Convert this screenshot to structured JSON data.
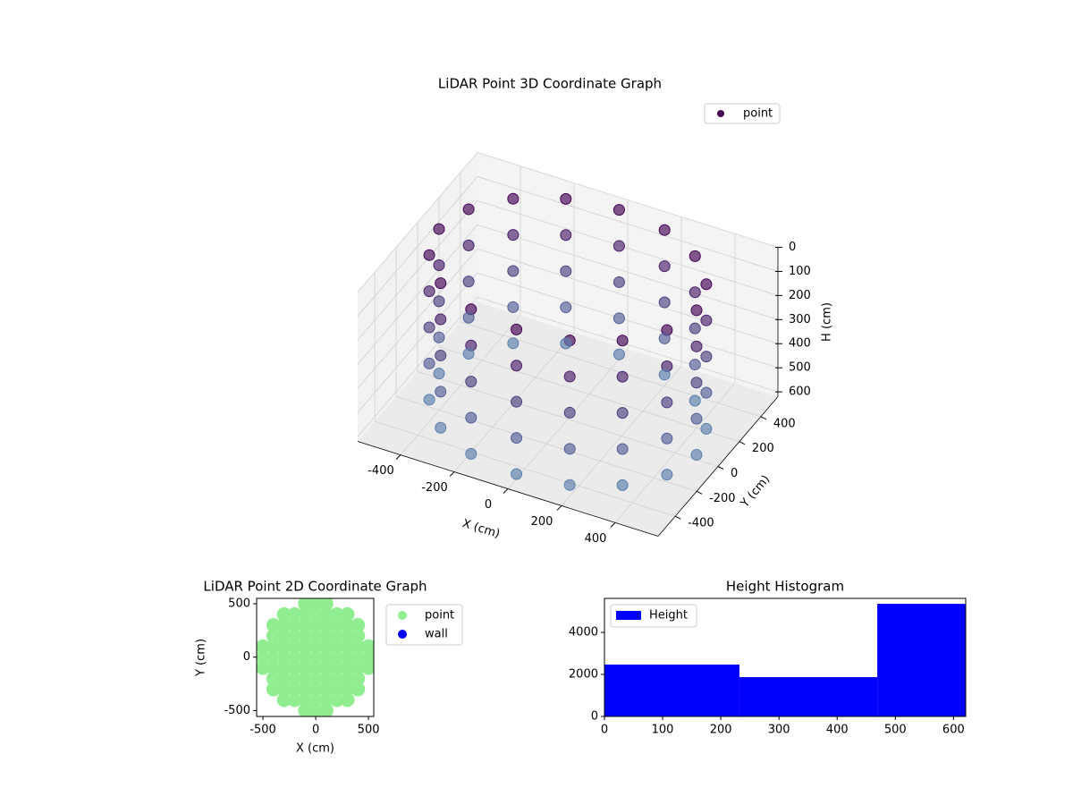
{
  "chart_data": [
    {
      "type": "scatter3d",
      "title": "LiDAR Point 3D Coordinate Graph",
      "x_label": "X (cm)",
      "y_label": "Y (cm)",
      "z_label": "H (cm)",
      "xlim": [
        -560,
        560
      ],
      "ylim": [
        -560,
        560
      ],
      "zlim": [
        0,
        620
      ],
      "invert_z": true,
      "xticks": [
        -400,
        -200,
        0,
        200,
        400
      ],
      "yticks": [
        -400,
        -200,
        0,
        200,
        400
      ],
      "zticks": [
        0,
        100,
        200,
        300,
        400,
        500,
        600
      ],
      "grid": true,
      "legend": "upper right",
      "colormap": [
        "#440154",
        "#5b84b1"
      ],
      "series": [
        {
          "name": "point",
          "color": "#440154",
          "x": [
            480,
            443,
            339,
            184,
            0,
            -184,
            -339,
            -443,
            -480,
            -443,
            -339,
            -184,
            0,
            184,
            339,
            443,
            480,
            443,
            339,
            184,
            0,
            -184,
            -339,
            -443,
            -480,
            -443,
            -339,
            -184,
            0,
            184,
            339,
            443,
            480,
            443,
            339,
            184,
            0,
            -184,
            -339,
            -443,
            -480,
            -443,
            -339,
            -184,
            0,
            184,
            339,
            443,
            480,
            443,
            339,
            184,
            0,
            -184,
            -339,
            -443,
            -480,
            -443,
            -339,
            -184,
            0,
            184,
            339,
            443,
            480,
            443,
            339,
            184,
            0,
            -184,
            -339,
            -443,
            -480,
            -443,
            -339,
            -184,
            0,
            184,
            339,
            443
          ],
          "y": [
            0,
            184,
            339,
            443,
            480,
            443,
            339,
            184,
            0,
            -184,
            -339,
            -443,
            -480,
            -443,
            -339,
            -184,
            0,
            184,
            339,
            443,
            480,
            443,
            339,
            184,
            0,
            -184,
            -339,
            -443,
            -480,
            -443,
            -339,
            -184,
            0,
            184,
            339,
            443,
            480,
            443,
            339,
            184,
            0,
            -184,
            -339,
            -443,
            -480,
            -443,
            -339,
            -184,
            0,
            184,
            339,
            443,
            480,
            443,
            339,
            184,
            0,
            -184,
            -339,
            -443,
            -480,
            -443,
            -339,
            -184,
            0,
            184,
            339,
            443,
            480,
            443,
            339,
            184,
            0,
            -184,
            -339,
            -443,
            -480,
            -443,
            -339,
            -184
          ],
          "z": [
            0,
            0,
            0,
            0,
            0,
            0,
            0,
            0,
            0,
            0,
            0,
            0,
            0,
            0,
            0,
            0,
            150,
            150,
            150,
            150,
            150,
            150,
            150,
            150,
            150,
            150,
            150,
            150,
            150,
            150,
            150,
            150,
            300,
            300,
            300,
            300,
            300,
            300,
            300,
            300,
            300,
            300,
            300,
            300,
            300,
            300,
            300,
            300,
            450,
            450,
            450,
            450,
            450,
            450,
            450,
            450,
            450,
            450,
            450,
            450,
            450,
            450,
            450,
            450,
            600,
            600,
            600,
            600,
            600,
            600,
            600,
            600,
            600,
            600,
            600,
            600,
            600,
            600,
            600,
            600
          ]
        }
      ]
    },
    {
      "type": "scatter",
      "title": "LiDAR Point 2D Coordinate Graph",
      "x_label": "X (cm)",
      "y_label": "Y (cm)",
      "xlim": [
        -560,
        550
      ],
      "ylim": [
        -555,
        550
      ],
      "xticks": [
        -500,
        0,
        500
      ],
      "yticks": [
        -500,
        0,
        500
      ],
      "legend": "outside right",
      "series": [
        {
          "name": "point",
          "color": "#90ee90",
          "x": [
            -500,
            -500,
            -500,
            -400,
            -400,
            -400,
            -400,
            -400,
            -400,
            -400,
            -300,
            -300,
            -300,
            -300,
            -300,
            -300,
            -300,
            -300,
            -300,
            -200,
            -200,
            -200,
            -200,
            -200,
            -200,
            -200,
            -200,
            -200,
            -100,
            -100,
            -100,
            -100,
            -100,
            -100,
            -100,
            -100,
            -100,
            -100,
            -100,
            0,
            0,
            0,
            0,
            0,
            0,
            0,
            0,
            0,
            0,
            0,
            100,
            100,
            100,
            100,
            100,
            100,
            100,
            100,
            100,
            100,
            100,
            200,
            200,
            200,
            200,
            200,
            200,
            200,
            200,
            200,
            300,
            300,
            300,
            300,
            300,
            300,
            300,
            300,
            300,
            400,
            400,
            400,
            400,
            400,
            400,
            400,
            500,
            500,
            500
          ],
          "y": [
            -100,
            0,
            100,
            -300,
            -200,
            -100,
            0,
            100,
            200,
            300,
            -400,
            -300,
            -200,
            -100,
            0,
            100,
            200,
            300,
            400,
            -400,
            -300,
            -200,
            -100,
            0,
            100,
            200,
            300,
            400,
            -500,
            -400,
            -300,
            -200,
            -100,
            0,
            100,
            200,
            300,
            400,
            500,
            -500,
            -400,
            -300,
            -200,
            -100,
            0,
            100,
            200,
            300,
            400,
            500,
            -500,
            -400,
            -300,
            -200,
            -100,
            0,
            100,
            200,
            300,
            400,
            500,
            -400,
            -300,
            -200,
            -100,
            0,
            100,
            200,
            300,
            400,
            -400,
            -300,
            -200,
            -100,
            0,
            100,
            200,
            300,
            400,
            -300,
            -200,
            -100,
            0,
            100,
            200,
            300,
            -100,
            0,
            100
          ]
        },
        {
          "name": "wall",
          "color": "#0000ff",
          "x": [],
          "y": []
        }
      ]
    },
    {
      "type": "histogram",
      "title": "Height Histogram",
      "bins": [
        0,
        232,
        469,
        621
      ],
      "counts": [
        2470,
        1870,
        5360
      ],
      "xlim": [
        0,
        621
      ],
      "ylim": [
        0,
        5620
      ],
      "xticks": [
        0,
        100,
        200,
        300,
        400,
        500,
        600
      ],
      "yticks": [
        0,
        2000,
        4000
      ],
      "legend": "upper left",
      "series_name": "Height",
      "color": "#0000ff"
    }
  ]
}
